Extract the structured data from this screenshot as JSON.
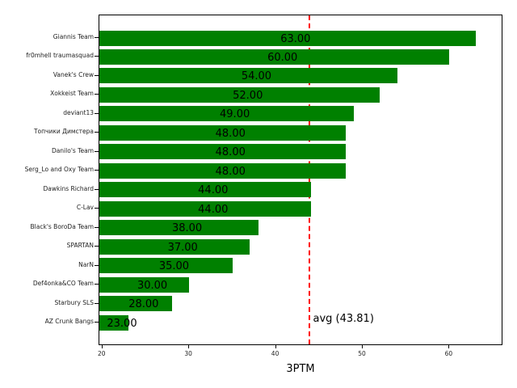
{
  "chart_data": {
    "type": "bar",
    "orientation": "horizontal",
    "title": "",
    "xlabel": "3PTM",
    "ylabel": "",
    "xlim": [
      19.65,
      66.2
    ],
    "xticks": [
      20,
      30,
      40,
      50,
      60
    ],
    "grid": false,
    "bar_color": "#008000",
    "categories": [
      "Giannis Team",
      "fr0mhell traumasquad",
      "Vanek's Crew",
      "Xokkeist Team",
      "deviant13",
      "Топчики Димстера",
      "Danilo's Team",
      "Serg_Lo and Oxy Team",
      "Dawkins Richard",
      "C-Lav",
      "Black's BoroDa Team",
      "SPARTAN",
      "NarN",
      "Def4onka&CO Team",
      "Starbury SLS",
      "AZ Crunk Bangs"
    ],
    "values": [
      63.0,
      60.0,
      54.0,
      52.0,
      49.0,
      48.0,
      48.0,
      48.0,
      44.0,
      44.0,
      38.0,
      37.0,
      35.0,
      30.0,
      28.0,
      23.0
    ],
    "value_labels": [
      "63.00",
      "60.00",
      "54.00",
      "52.00",
      "49.00",
      "48.00",
      "48.00",
      "48.00",
      "44.00",
      "44.00",
      "38.00",
      "37.00",
      "35.00",
      "30.00",
      "28.00",
      "23.00"
    ],
    "reference_line": {
      "value": 43.81,
      "label": "avg (43.81)",
      "color": "#ff0000",
      "style": "dashed"
    }
  }
}
